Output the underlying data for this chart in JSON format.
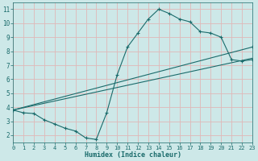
{
  "xlabel": "Humidex (Indice chaleur)",
  "xlim": [
    0,
    23
  ],
  "ylim": [
    1.5,
    11.5
  ],
  "xticks": [
    0,
    1,
    2,
    3,
    4,
    5,
    6,
    7,
    8,
    9,
    10,
    11,
    12,
    13,
    14,
    15,
    16,
    17,
    18,
    19,
    20,
    21,
    22,
    23
  ],
  "yticks": [
    2,
    3,
    4,
    5,
    6,
    7,
    8,
    9,
    10,
    11
  ],
  "bg_color": "#cde8e8",
  "grid_color": "#e0b8b8",
  "line_color": "#1a6b6b",
  "lines": [
    {
      "x": [
        0,
        1,
        2,
        3,
        4,
        5,
        6,
        7,
        8,
        9,
        10,
        11,
        12,
        13,
        14,
        15,
        16,
        17,
        18,
        19,
        20,
        21,
        22,
        23
      ],
      "y": [
        3.8,
        3.6,
        3.55,
        3.1,
        2.8,
        2.5,
        2.3,
        1.8,
        1.7,
        3.6,
        6.3,
        8.3,
        9.3,
        10.3,
        11.0,
        10.7,
        10.3,
        10.1,
        9.4,
        9.3,
        9.0,
        7.4,
        7.3,
        7.4
      ],
      "marker": true
    },
    {
      "x": [
        0,
        23
      ],
      "y": [
        3.8,
        8.3
      ],
      "marker": true
    },
    {
      "x": [
        0,
        23
      ],
      "y": [
        3.8,
        7.5
      ],
      "marker": false
    }
  ]
}
